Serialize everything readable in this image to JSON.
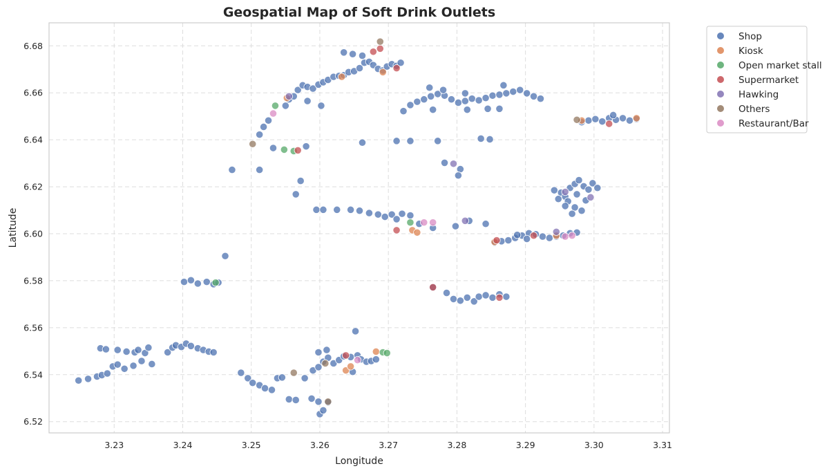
{
  "chart_data": {
    "type": "scatter",
    "title": "Geospatial Map of Soft Drink Outlets",
    "xlabel": "Longitude",
    "ylabel": "Latitude",
    "xlim": [
      3.2205,
      3.311
    ],
    "ylim": [
      6.5152,
      6.6898
    ],
    "xticks": [
      "3.23",
      "3.24",
      "3.25",
      "3.26",
      "3.27",
      "3.28",
      "3.29",
      "3.30",
      "3.31"
    ],
    "yticks": [
      "6.52",
      "6.54",
      "6.56",
      "6.58",
      "6.60",
      "6.62",
      "6.64",
      "6.66",
      "6.68"
    ],
    "grid": true,
    "legend_position": "outside-right",
    "series": [
      {
        "name": "Shop",
        "color": "#4c72b0",
        "points": [
          [
            3.2248,
            6.5375
          ],
          [
            3.2262,
            6.5382
          ],
          [
            3.2275,
            6.5392
          ],
          [
            3.2282,
            6.5398
          ],
          [
            3.229,
            6.5405
          ],
          [
            3.2298,
            6.5435
          ],
          [
            3.2305,
            6.5443
          ],
          [
            3.2315,
            6.5425
          ],
          [
            3.2328,
            6.5438
          ],
          [
            3.234,
            6.5458
          ],
          [
            3.2355,
            6.5445
          ],
          [
            3.228,
            6.5512
          ],
          [
            3.2288,
            6.5508
          ],
          [
            3.2305,
            6.5505
          ],
          [
            3.2318,
            6.5498
          ],
          [
            3.233,
            6.5495
          ],
          [
            3.2345,
            6.5492
          ],
          [
            3.235,
            6.5515
          ],
          [
            3.2335,
            6.5505
          ],
          [
            3.2378,
            6.5495
          ],
          [
            3.2385,
            6.5515
          ],
          [
            3.239,
            6.5525
          ],
          [
            3.2398,
            6.5518
          ],
          [
            3.2405,
            6.5532
          ],
          [
            3.2412,
            6.5522
          ],
          [
            3.2422,
            6.5512
          ],
          [
            3.243,
            6.5505
          ],
          [
            3.2438,
            6.5498
          ],
          [
            3.2445,
            6.5495
          ],
          [
            3.2402,
            6.5795
          ],
          [
            3.2412,
            6.5802
          ],
          [
            3.2422,
            6.5788
          ],
          [
            3.2435,
            6.5795
          ],
          [
            3.2445,
            6.5785
          ],
          [
            3.2452,
            6.5792
          ],
          [
            3.2462,
            6.5905
          ],
          [
            3.2485,
            6.5408
          ],
          [
            3.2495,
            6.5385
          ],
          [
            3.2502,
            6.5365
          ],
          [
            3.2512,
            6.5355
          ],
          [
            3.252,
            6.5342
          ],
          [
            3.253,
            6.5335
          ],
          [
            3.2538,
            6.5385
          ],
          [
            3.2545,
            6.5388
          ],
          [
            3.2555,
            6.5295
          ],
          [
            3.2565,
            6.5292
          ],
          [
            3.2578,
            6.5385
          ],
          [
            3.2588,
            6.5298
          ],
          [
            3.2598,
            6.5285
          ],
          [
            3.26,
            6.5232
          ],
          [
            3.2605,
            6.5248
          ],
          [
            3.2612,
            6.5282
          ],
          [
            3.259,
            6.5418
          ],
          [
            3.2598,
            6.5432
          ],
          [
            3.2605,
            6.5455
          ],
          [
            3.2612,
            6.5472
          ],
          [
            3.262,
            6.5448
          ],
          [
            3.2628,
            6.5462
          ],
          [
            3.2635,
            6.5478
          ],
          [
            3.2645,
            6.5475
          ],
          [
            3.2648,
            6.5412
          ],
          [
            3.2652,
            6.5585
          ],
          [
            3.2655,
            6.5482
          ],
          [
            3.266,
            6.5465
          ],
          [
            3.2668,
            6.5455
          ],
          [
            3.2675,
            6.5458
          ],
          [
            3.2682,
            6.5465
          ],
          [
            3.2598,
            6.5495
          ],
          [
            3.261,
            6.5505
          ],
          [
            3.2472,
            6.6272
          ],
          [
            3.2512,
            6.6272
          ],
          [
            3.2565,
            6.6168
          ],
          [
            3.2572,
            6.6225
          ],
          [
            3.258,
            6.6372
          ],
          [
            3.2532,
            6.6365
          ],
          [
            3.2512,
            6.6422
          ],
          [
            3.2518,
            6.6455
          ],
          [
            3.2525,
            6.6482
          ],
          [
            3.255,
            6.6545
          ],
          [
            3.2555,
            6.6572
          ],
          [
            3.2562,
            6.6585
          ],
          [
            3.2568,
            6.6612
          ],
          [
            3.2575,
            6.6632
          ],
          [
            3.2582,
            6.6625
          ],
          [
            3.259,
            6.6618
          ],
          [
            3.2598,
            6.6635
          ],
          [
            3.2605,
            6.6645
          ],
          [
            3.2612,
            6.6655
          ],
          [
            3.262,
            6.6668
          ],
          [
            3.2628,
            6.6672
          ],
          [
            3.2635,
            6.6675
          ],
          [
            3.2642,
            6.6688
          ],
          [
            3.265,
            6.6692
          ],
          [
            3.2658,
            6.6705
          ],
          [
            3.2665,
            6.6728
          ],
          [
            3.2672,
            6.6732
          ],
          [
            3.2678,
            6.6718
          ],
          [
            3.2685,
            6.6702
          ],
          [
            3.2692,
            6.6695
          ],
          [
            3.2698,
            6.6712
          ],
          [
            3.2705,
            6.6722
          ],
          [
            3.2712,
            6.6715
          ],
          [
            3.2718,
            6.6728
          ],
          [
            3.2635,
            6.6772
          ],
          [
            3.2648,
            6.6765
          ],
          [
            3.2662,
            6.6758
          ],
          [
            3.2602,
            6.6545
          ],
          [
            3.2582,
            6.6565
          ],
          [
            3.2662,
            6.6388
          ],
          [
            3.2722,
            6.6522
          ],
          [
            3.2732,
            6.6548
          ],
          [
            3.2742,
            6.6562
          ],
          [
            3.2752,
            6.6572
          ],
          [
            3.2762,
            6.6585
          ],
          [
            3.2772,
            6.6595
          ],
          [
            3.2782,
            6.6588
          ],
          [
            3.2792,
            6.6572
          ],
          [
            3.2802,
            6.6558
          ],
          [
            3.2812,
            6.6565
          ],
          [
            3.2822,
            6.6575
          ],
          [
            3.2832,
            6.6568
          ],
          [
            3.2842,
            6.6578
          ],
          [
            3.2852,
            6.6588
          ],
          [
            3.2862,
            6.6592
          ],
          [
            3.2872,
            6.6598
          ],
          [
            3.2882,
            6.6605
          ],
          [
            3.2892,
            6.6612
          ],
          [
            3.2902,
            6.6598
          ],
          [
            3.2912,
            6.6585
          ],
          [
            3.2922,
            6.6575
          ],
          [
            3.276,
            6.6622
          ],
          [
            3.278,
            6.6612
          ],
          [
            3.2812,
            6.6598
          ],
          [
            3.2845,
            6.6532
          ],
          [
            3.2862,
            6.6532
          ],
          [
            3.2868,
            6.6632
          ],
          [
            3.2815,
            6.6528
          ],
          [
            3.2765,
            6.6528
          ],
          [
            3.2712,
            6.6395
          ],
          [
            3.2732,
            6.6395
          ],
          [
            3.2772,
            6.6395
          ],
          [
            3.2835,
            6.6405
          ],
          [
            3.2848,
            6.6402
          ],
          [
            3.2782,
            6.6302
          ],
          [
            3.2805,
            6.6275
          ],
          [
            3.2802,
            6.6248
          ],
          [
            3.2595,
            6.6102
          ],
          [
            3.2605,
            6.6102
          ],
          [
            3.2625,
            6.6102
          ],
          [
            3.2645,
            6.6102
          ],
          [
            3.2658,
            6.6098
          ],
          [
            3.2672,
            6.6088
          ],
          [
            3.2685,
            6.6082
          ],
          [
            3.2695,
            6.6072
          ],
          [
            3.2705,
            6.6082
          ],
          [
            3.2712,
            6.6062
          ],
          [
            3.272,
            6.6085
          ],
          [
            3.2732,
            6.6078
          ],
          [
            3.2745,
            6.6042
          ],
          [
            3.2765,
            6.6025
          ],
          [
            3.2798,
            6.6032
          ],
          [
            3.2818,
            6.6055
          ],
          [
            3.2842,
            6.6042
          ],
          [
            3.2855,
            6.5962
          ],
          [
            3.2865,
            6.5968
          ],
          [
            3.2875,
            6.5972
          ],
          [
            3.2885,
            6.5982
          ],
          [
            3.2895,
            6.5992
          ],
          [
            3.2905,
            6.6002
          ],
          [
            3.2915,
            6.5998
          ],
          [
            3.2925,
            6.5988
          ],
          [
            3.2935,
            6.5982
          ],
          [
            3.2945,
            6.5988
          ],
          [
            3.2955,
            6.5992
          ],
          [
            3.2965,
            6.6002
          ],
          [
            3.2975,
            6.6005
          ],
          [
            3.2888,
            6.5995
          ],
          [
            3.2902,
            6.5978
          ],
          [
            3.2942,
            6.6185
          ],
          [
            3.2952,
            6.6175
          ],
          [
            3.2958,
            6.6158
          ],
          [
            3.2965,
            6.6195
          ],
          [
            3.2972,
            6.6212
          ],
          [
            3.2978,
            6.6228
          ],
          [
            3.2985,
            6.6202
          ],
          [
            3.2992,
            6.6188
          ],
          [
            3.2998,
            6.6215
          ],
          [
            3.3005,
            6.6195
          ],
          [
            3.2962,
            6.6138
          ],
          [
            3.2972,
            6.6112
          ],
          [
            3.2982,
            6.6098
          ],
          [
            3.2968,
            6.6085
          ],
          [
            3.2958,
            6.6118
          ],
          [
            3.2948,
            6.6148
          ],
          [
            3.2975,
            6.6168
          ],
          [
            3.2988,
            6.6142
          ],
          [
            3.2982,
            6.6475
          ],
          [
            3.2992,
            6.6482
          ],
          [
            3.3002,
            6.6488
          ],
          [
            3.3012,
            6.6478
          ],
          [
            3.3022,
            6.6492
          ],
          [
            3.3032,
            6.6485
          ],
          [
            3.3042,
            6.6492
          ],
          [
            3.3052,
            6.6482
          ],
          [
            3.3062,
            6.6488
          ],
          [
            3.3028,
            6.6505
          ],
          [
            3.2765,
            6.5772
          ],
          [
            3.2785,
            6.5748
          ],
          [
            3.2795,
            6.5722
          ],
          [
            3.2805,
            6.5715
          ],
          [
            3.2815,
            6.5728
          ],
          [
            3.2825,
            6.5712
          ],
          [
            3.2832,
            6.5732
          ],
          [
            3.2842,
            6.5738
          ],
          [
            3.2852,
            6.5728
          ],
          [
            3.2862,
            6.5742
          ],
          [
            3.2872,
            6.5732
          ]
        ]
      },
      {
        "name": "Kiosk",
        "color": "#dd8452",
        "points": [
          [
            3.2632,
            6.6668
          ],
          [
            3.2692,
            6.6688
          ],
          [
            3.2638,
            6.5418
          ],
          [
            3.2645,
            6.5435
          ],
          [
            3.2735,
            6.6015
          ],
          [
            3.2742,
            6.6005
          ],
          [
            3.2855,
            6.5965
          ],
          [
            3.2945,
            6.5992
          ],
          [
            3.2982,
            6.6482
          ],
          [
            3.3062,
            6.6492
          ],
          [
            3.2682,
            6.5498
          ],
          [
            3.2552,
            6.6578
          ]
        ]
      },
      {
        "name": "Open market stall",
        "color": "#55a868",
        "points": [
          [
            3.2535,
            6.6545
          ],
          [
            3.2548,
            6.6358
          ],
          [
            3.2692,
            6.5495
          ],
          [
            3.2698,
            6.5492
          ],
          [
            3.2448,
            6.5792
          ],
          [
            3.2732,
            6.6048
          ],
          [
            3.2562,
            6.6352
          ]
        ]
      },
      {
        "name": "Supermarket",
        "color": "#c44e52",
        "points": [
          [
            3.2688,
            6.6788
          ],
          [
            3.2712,
            6.6705
          ],
          [
            3.2678,
            6.6775
          ],
          [
            3.2765,
            6.5772
          ],
          [
            3.2712,
            6.6015
          ],
          [
            3.2862,
            6.5728
          ],
          [
            3.2912,
            6.5992
          ],
          [
            3.3022,
            6.6468
          ],
          [
            3.2638,
            6.5482
          ],
          [
            3.2568,
            6.6355
          ],
          [
            3.2858,
            6.5972
          ]
        ]
      },
      {
        "name": "Hawking",
        "color": "#8172b3",
        "points": [
          [
            3.2555,
            6.6585
          ],
          [
            3.2795,
            6.6298
          ],
          [
            3.2812,
            6.6055
          ],
          [
            3.2958,
            6.6178
          ],
          [
            3.2995,
            6.6155
          ],
          [
            3.2945,
            6.6008
          ]
        ]
      },
      {
        "name": "Others",
        "color": "#937860",
        "points": [
          [
            3.2688,
            6.6818
          ],
          [
            3.2502,
            6.6382
          ],
          [
            3.2612,
            6.5285
          ],
          [
            3.2562,
            6.5408
          ],
          [
            3.2975,
            6.6485
          ],
          [
            3.2608,
            6.5448
          ]
        ]
      },
      {
        "name": "Restaurant/Bar",
        "color": "#da8bc3",
        "points": [
          [
            3.2532,
            6.6512
          ],
          [
            3.2752,
            6.6048
          ],
          [
            3.2765,
            6.6048
          ],
          [
            3.2958,
            6.5988
          ],
          [
            3.2968,
            6.5992
          ],
          [
            3.2655,
            6.5462
          ]
        ]
      }
    ]
  }
}
